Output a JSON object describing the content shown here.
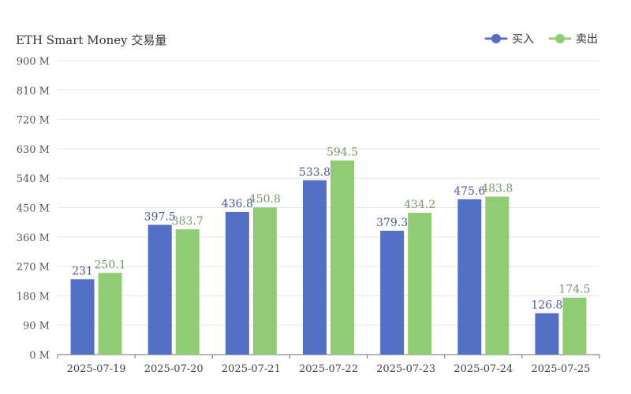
{
  "chart_data": {
    "type": "bar",
    "title": "ETH Smart Money 交易量",
    "categories": [
      "2025-07-19",
      "2025-07-20",
      "2025-07-21",
      "2025-07-22",
      "2025-07-23",
      "2025-07-24",
      "2025-07-25"
    ],
    "series": [
      {
        "name": "买入",
        "color": "#5470c6",
        "values": [
          231,
          397.5,
          436.8,
          533.8,
          379.3,
          475.6,
          126.8
        ]
      },
      {
        "name": "卖出",
        "color": "#91cc75",
        "values": [
          250.1,
          383.7,
          450.8,
          594.5,
          434.2,
          483.8,
          174.5
        ]
      }
    ],
    "ylim": [
      0,
      900
    ],
    "yticks": [
      0,
      90,
      180,
      270,
      360,
      450,
      540,
      630,
      720,
      810,
      900
    ],
    "ytick_suffix": " M",
    "grid": true,
    "legend_position": "top-right",
    "data_labels": true
  }
}
